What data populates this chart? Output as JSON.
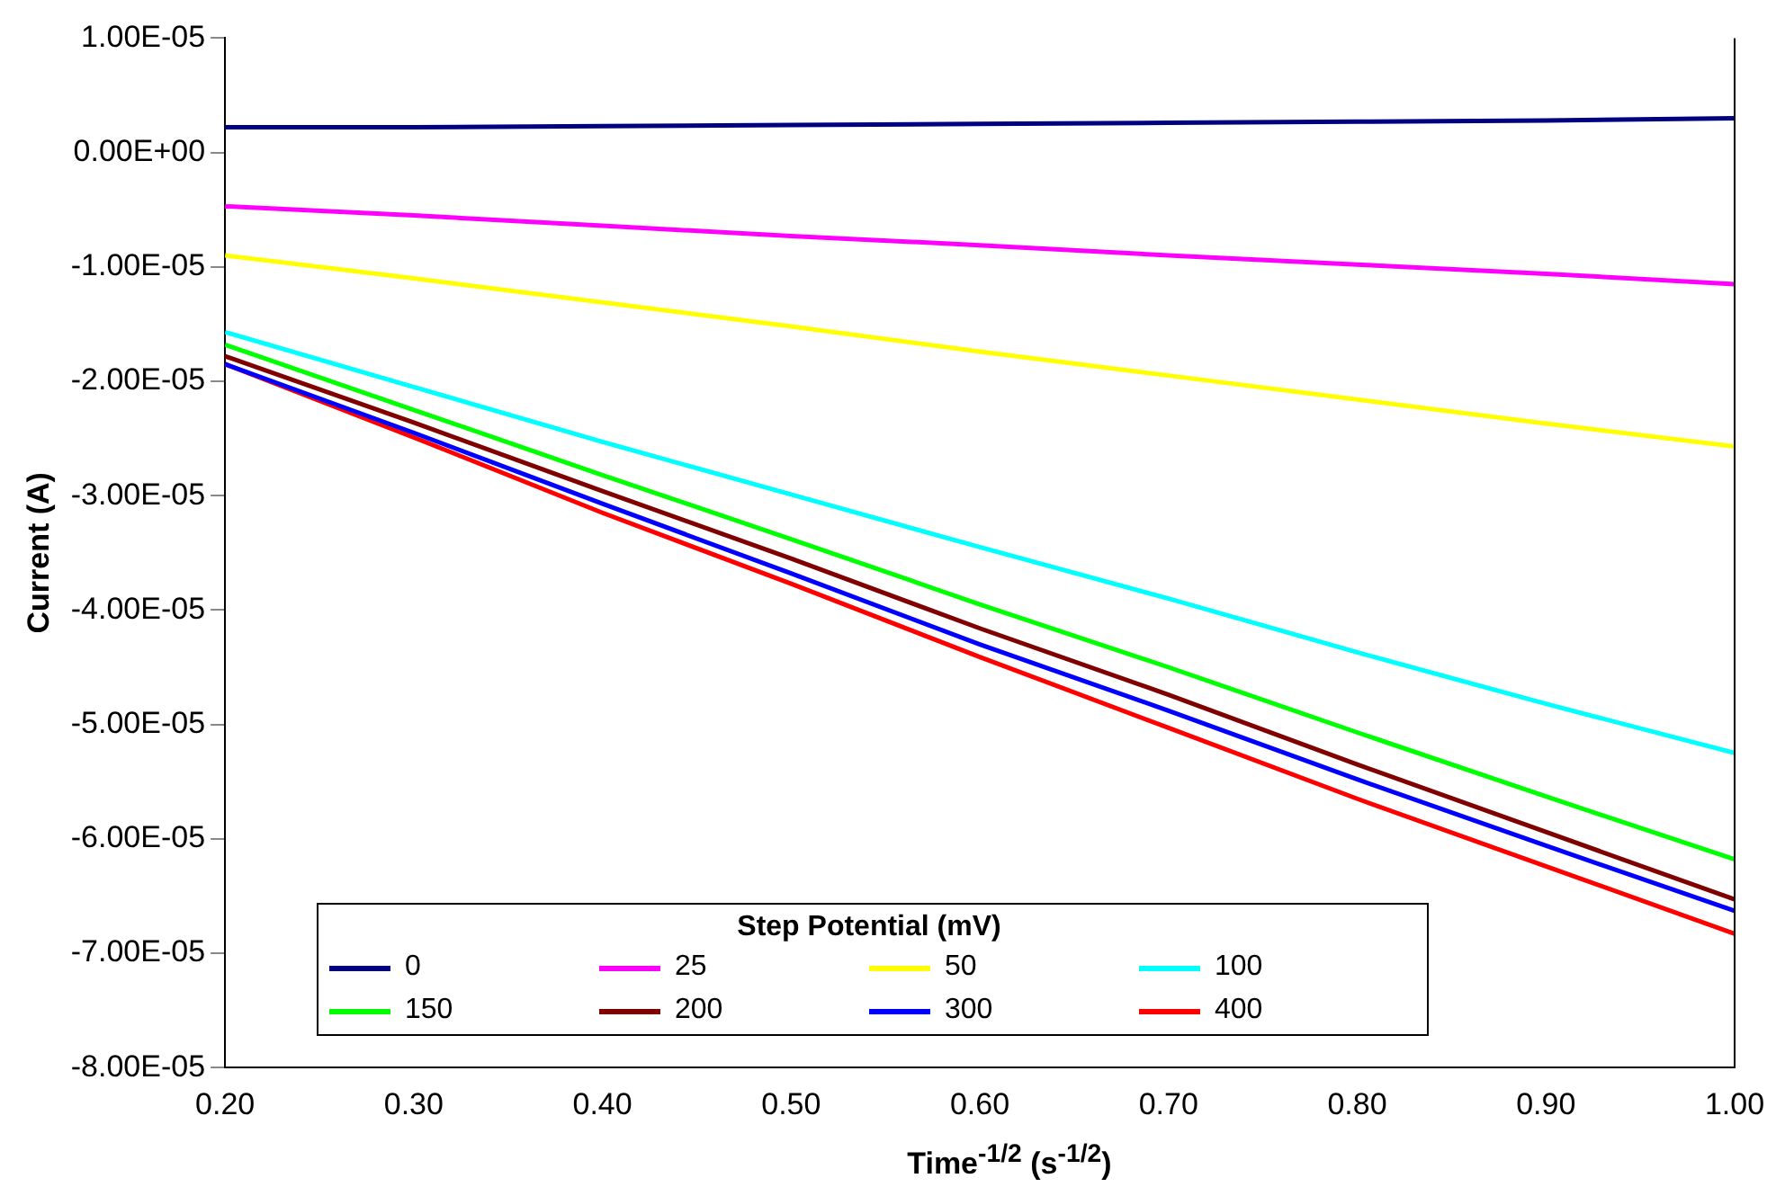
{
  "chart_data": {
    "type": "line",
    "xlabel": "Time$^{-1/2}$ (s$^{-1/2}$)",
    "ylabel": "Current (A)",
    "legend_title": "Step Potential (mV)",
    "legend": "bottom left",
    "grid": false,
    "marker": "none",
    "line_style": "solid",
    "x": [
      0.2,
      0.3,
      0.4,
      0.5,
      0.6,
      0.7,
      0.8,
      0.9,
      1.0
    ],
    "xlim": [
      0.2,
      1.0
    ],
    "xticks": [
      {
        "value": 0.2,
        "label": "0.20"
      },
      {
        "value": 0.3,
        "label": "0.30"
      },
      {
        "value": 0.4,
        "label": "0.40"
      },
      {
        "value": 0.5,
        "label": "0.50"
      },
      {
        "value": 0.6,
        "label": "0.60"
      },
      {
        "value": 0.7,
        "label": "0.70"
      },
      {
        "value": 0.8,
        "label": "0.80"
      },
      {
        "value": 0.9,
        "label": "0.90"
      },
      {
        "value": 1.0,
        "label": "1.00"
      }
    ],
    "ylim": [
      -8e-05,
      1e-05
    ],
    "yticks": [
      {
        "value": 1e-05,
        "label": "1.00E-05"
      },
      {
        "value": 0,
        "label": "0.00E+00"
      },
      {
        "value": -1e-05,
        "label": "-1.00E-05"
      },
      {
        "value": -2e-05,
        "label": "-2.00E-05"
      },
      {
        "value": -3e-05,
        "label": "-3.00E-05"
      },
      {
        "value": -4e-05,
        "label": "-4.00E-05"
      },
      {
        "value": -5e-05,
        "label": "-5.00E-05"
      },
      {
        "value": -6e-05,
        "label": "-6.00E-05"
      },
      {
        "value": -7e-05,
        "label": "-7.00E-05"
      },
      {
        "value": -8e-05,
        "label": "-8.00E-05"
      }
    ],
    "series": [
      {
        "name": "0",
        "color": "#000080",
        "values": [
          2.2e-06,
          2.2e-06,
          2.3e-06,
          2.4e-06,
          2.5e-06,
          2.6e-06,
          2.7e-06,
          2.8e-06,
          3e-06
        ]
      },
      {
        "name": "25",
        "color": "#ff00ff",
        "values": [
          -4.7e-06,
          -5.5e-06,
          -6.4e-06,
          -7.3e-06,
          -8.1e-06,
          -9e-06,
          -9.8e-06,
          -1.06e-05,
          -1.15e-05
        ]
      },
      {
        "name": "50",
        "color": "#ffff00",
        "values": [
          -9e-06,
          -1.1e-05,
          -1.31e-05,
          -1.52e-05,
          -1.74e-05,
          -1.95e-05,
          -2.16e-05,
          -2.37e-05,
          -2.57e-05
        ]
      },
      {
        "name": "100",
        "color": "#00ffff",
        "values": [
          -1.57e-05,
          -2.05e-05,
          -2.53e-05,
          -2.99e-05,
          -3.45e-05,
          -3.9e-05,
          -4.37e-05,
          -4.82e-05,
          -5.25e-05
        ]
      },
      {
        "name": "150",
        "color": "#00ff00",
        "values": [
          -1.68e-05,
          -2.25e-05,
          -2.82e-05,
          -3.38e-05,
          -3.95e-05,
          -4.5e-05,
          -5.07e-05,
          -5.63e-05,
          -6.18e-05
        ]
      },
      {
        "name": "200",
        "color": "#800000",
        "values": [
          -1.78e-05,
          -2.36e-05,
          -2.96e-05,
          -3.55e-05,
          -4.16e-05,
          -4.74e-05,
          -5.35e-05,
          -5.94e-05,
          -6.53e-05
        ]
      },
      {
        "name": "300",
        "color": "#0000ff",
        "values": [
          -1.85e-05,
          -2.45e-05,
          -3.07e-05,
          -3.68e-05,
          -4.3e-05,
          -4.88e-05,
          -5.48e-05,
          -6.06e-05,
          -6.63e-05
        ]
      },
      {
        "name": "400",
        "color": "#ff0000",
        "values": [
          -1.85e-05,
          -2.49e-05,
          -3.15e-05,
          -3.77e-05,
          -4.41e-05,
          -5.03e-05,
          -5.65e-05,
          -6.24e-05,
          -6.83e-05
        ]
      }
    ]
  }
}
